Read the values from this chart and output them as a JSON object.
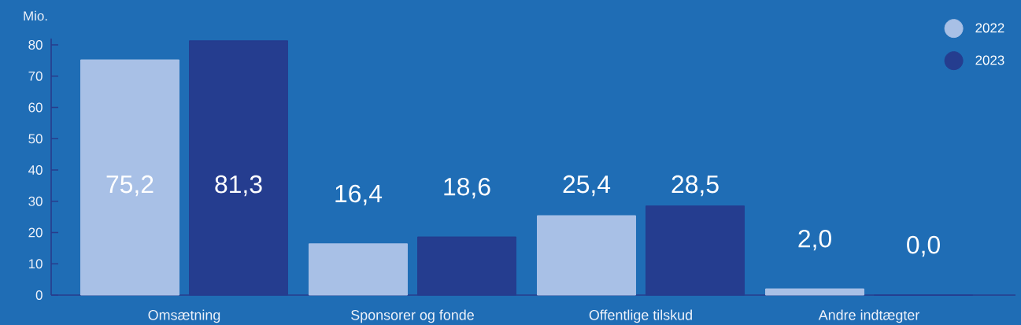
{
  "chart_data": {
    "type": "bar",
    "ylabel": "Mio.",
    "categories": [
      "Omsætning",
      "Sponsorer og fonde",
      "Offentlige tilskud",
      "Andre indtægter"
    ],
    "series": [
      {
        "name": "2022",
        "color": "#a8c0e6",
        "values": [
          75.2,
          16.4,
          25.4,
          2.0
        ],
        "value_labels": [
          "75,2",
          "16,4",
          "25,4",
          "2,0"
        ]
      },
      {
        "name": "2023",
        "color": "#253d8f",
        "values": [
          81.3,
          18.6,
          28.5,
          0.0
        ],
        "value_labels": [
          "81,3",
          "18,6",
          "28,5",
          "0,0"
        ]
      }
    ],
    "ylim": [
      0,
      82
    ],
    "yticks": [
      0,
      10,
      20,
      30,
      40,
      50,
      60,
      70,
      80
    ],
    "legend": "top right"
  }
}
